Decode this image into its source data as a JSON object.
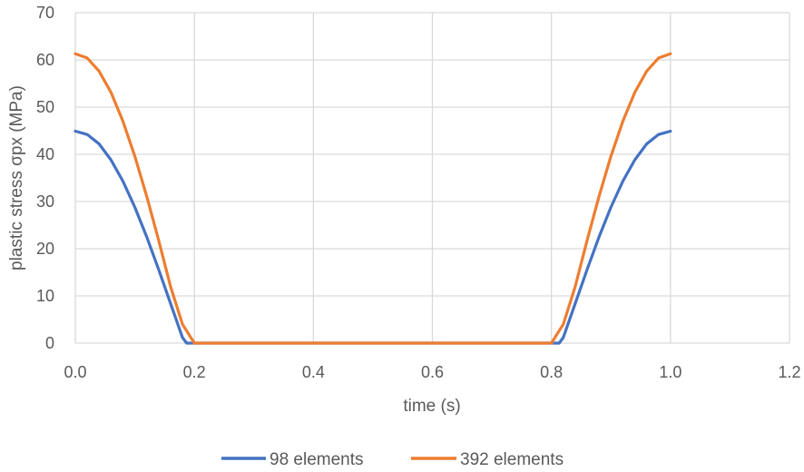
{
  "chart_data": {
    "type": "line",
    "title": "",
    "xlabel": "time (s)",
    "ylabel": "plastic stress σpx (MPa)",
    "xlim": [
      0,
      1.2
    ],
    "ylim": [
      0,
      70
    ],
    "x_ticks": [
      "0.0",
      "0.2",
      "0.4",
      "0.6",
      "0.8",
      "1.0",
      "1.2"
    ],
    "y_ticks": [
      "0",
      "10",
      "20",
      "30",
      "40",
      "50",
      "60",
      "70"
    ],
    "grid": true,
    "legend_position": "bottom",
    "series": [
      {
        "name": "98 elements",
        "color": "#4472c4",
        "points": [
          [
            0.0,
            44.9
          ],
          [
            0.02,
            44.2
          ],
          [
            0.04,
            42.2
          ],
          [
            0.06,
            38.8
          ],
          [
            0.08,
            34.3
          ],
          [
            0.1,
            28.8
          ],
          [
            0.12,
            22.5
          ],
          [
            0.14,
            15.6
          ],
          [
            0.16,
            8.4
          ],
          [
            0.18,
            1.2
          ],
          [
            0.187,
            0.0
          ],
          [
            0.2,
            0.0
          ],
          [
            0.4,
            0.0
          ],
          [
            0.6,
            0.0
          ],
          [
            0.8,
            0.0
          ],
          [
            0.813,
            0.0
          ],
          [
            0.82,
            1.2
          ],
          [
            0.84,
            8.4
          ],
          [
            0.86,
            15.6
          ],
          [
            0.88,
            22.5
          ],
          [
            0.9,
            28.8
          ],
          [
            0.92,
            34.3
          ],
          [
            0.94,
            38.8
          ],
          [
            0.96,
            42.2
          ],
          [
            0.98,
            44.2
          ],
          [
            1.0,
            44.9
          ]
        ]
      },
      {
        "name": "392 elements",
        "color": "#ed7d31",
        "points": [
          [
            0.0,
            61.3
          ],
          [
            0.02,
            60.4
          ],
          [
            0.04,
            57.6
          ],
          [
            0.06,
            53.1
          ],
          [
            0.08,
            47.0
          ],
          [
            0.1,
            39.6
          ],
          [
            0.12,
            31.1
          ],
          [
            0.14,
            21.8
          ],
          [
            0.16,
            12.0
          ],
          [
            0.18,
            4.0
          ],
          [
            0.2,
            0.0
          ],
          [
            0.4,
            0.0
          ],
          [
            0.6,
            0.0
          ],
          [
            0.8,
            0.0
          ],
          [
            0.82,
            4.0
          ],
          [
            0.84,
            12.0
          ],
          [
            0.86,
            21.8
          ],
          [
            0.88,
            31.1
          ],
          [
            0.9,
            39.6
          ],
          [
            0.92,
            47.0
          ],
          [
            0.94,
            53.1
          ],
          [
            0.96,
            57.6
          ],
          [
            0.98,
            60.4
          ],
          [
            1.0,
            61.3
          ]
        ]
      }
    ]
  }
}
